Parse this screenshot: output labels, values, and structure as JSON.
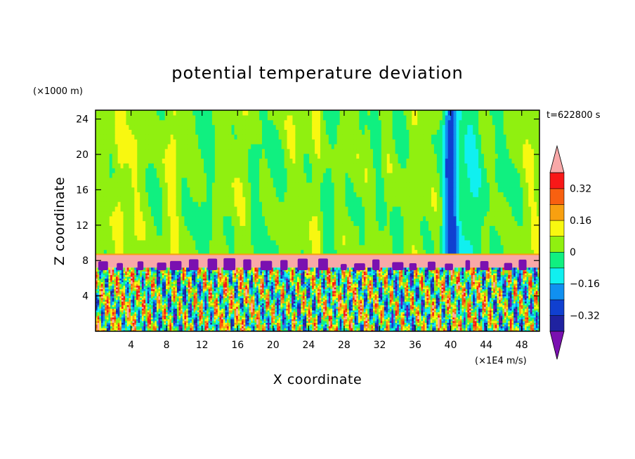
{
  "chart_data": {
    "type": "heatmap",
    "title": "potential temperature deviation",
    "xlabel": "X coordinate",
    "ylabel": "Z coordinate",
    "x_unit": "(×1E4 m/s)",
    "y_unit": "(×1000 m)",
    "time_label": "t=622800 s",
    "xlim": [
      0,
      50
    ],
    "ylim": [
      0,
      25
    ],
    "x_ticks": [
      4,
      8,
      12,
      16,
      20,
      24,
      28,
      32,
      36,
      40,
      44,
      48
    ],
    "y_ticks": [
      4,
      8,
      12,
      16,
      20,
      24
    ],
    "colorbar": {
      "tick_labels": [
        "0.32",
        "0.16",
        "0",
        "−0.16",
        "−0.32"
      ],
      "tick_values": [
        0.32,
        0.16,
        0,
        -0.16,
        -0.32
      ],
      "levels": [
        -0.4,
        -0.32,
        -0.24,
        -0.16,
        -0.08,
        0,
        0.08,
        0.16,
        0.24,
        0.32,
        0.4
      ],
      "colors": [
        "#7a10b0",
        "#1f22a0",
        "#1040d0",
        "#1090f0",
        "#10f0f0",
        "#10f080",
        "#90f010",
        "#f8f810",
        "#f8a010",
        "#f86010",
        "#f81818",
        "#f8a8a8"
      ],
      "extend": "both"
    },
    "regions": {
      "inversion_layer_z": [
        7.2,
        8.7
      ],
      "inversion_value": 0.45,
      "upper_layer_note": "mostly 0 to 0.08 with vertical streaks",
      "lower_layer_note": "turbulent mixed values -0.4 to 0.4"
    }
  }
}
